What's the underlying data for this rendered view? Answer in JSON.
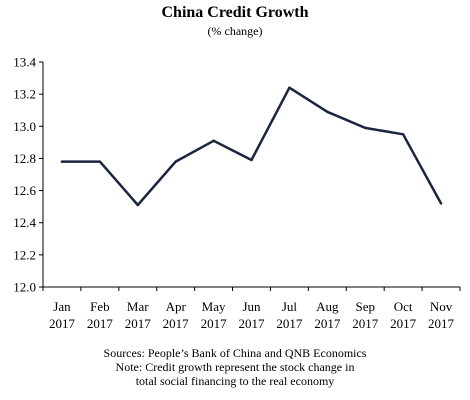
{
  "chart_data": {
    "type": "line",
    "title": "China Credit Growth",
    "subtitle": "(% change)",
    "xlabel": "",
    "ylabel": "",
    "categories": [
      [
        "Jan",
        "2017"
      ],
      [
        "Feb",
        "2017"
      ],
      [
        "Mar",
        "2017"
      ],
      [
        "Apr",
        "2017"
      ],
      [
        "May",
        "2017"
      ],
      [
        "Jun",
        "2017"
      ],
      [
        "Jul",
        "2017"
      ],
      [
        "Aug",
        "2017"
      ],
      [
        "Sep",
        "2017"
      ],
      [
        "Oct",
        "2017"
      ],
      [
        "Nov",
        "2017"
      ]
    ],
    "series": [
      {
        "values": [
          12.78,
          12.78,
          12.51,
          12.78,
          12.91,
          12.79,
          13.24,
          13.09,
          12.99,
          12.95,
          12.52
        ]
      }
    ],
    "ylim": [
      12.0,
      13.4
    ],
    "yticks": [
      "12.0",
      "12.2",
      "12.4",
      "12.6",
      "12.8",
      "13.0",
      "13.2",
      "13.4"
    ],
    "grid": false,
    "legend": "none",
    "line_color": "#1b2540"
  },
  "notes": {
    "sources": "Sources: People’s Bank of China and QNB Economics",
    "note_line1": "Note: Credit growth represent the stock change in",
    "note_line2": "total social financing to the real economy"
  }
}
